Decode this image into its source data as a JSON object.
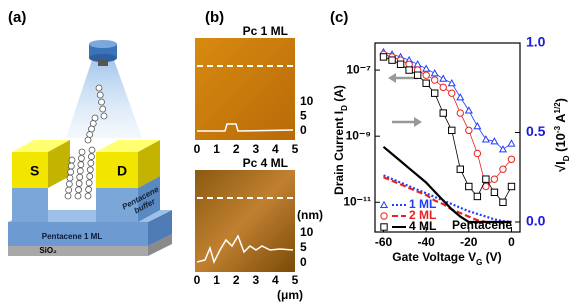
{
  "panel_labels": [
    "(a)",
    "(b)",
    "(c)"
  ],
  "diagram": {
    "source_label": "S",
    "drain_label": "D",
    "buffer_label": [
      "Pentacene",
      "buffer"
    ],
    "channel_label": "Pentacene 1 ML",
    "substrate_label": "SiO₂"
  },
  "afm": {
    "images": [
      {
        "title": "Pc 1 ML",
        "yticks": [
          0,
          5,
          10
        ],
        "xticks": [
          0,
          1,
          2,
          3,
          4,
          5
        ]
      },
      {
        "title": "Pc 4 ML",
        "yticks": [
          0,
          5,
          10
        ],
        "xticks": [
          0,
          1,
          2,
          3,
          4,
          5
        ],
        "y_unit": "(nm)",
        "x_unit": "(μm)"
      }
    ]
  },
  "chart_data": {
    "type": "line",
    "log_y": true,
    "x_label": [
      "Gate Voltage V",
      "G",
      " (V)"
    ],
    "y_label": [
      "Drain Current  I",
      "D",
      " (A)"
    ],
    "y2_label": [
      "√I",
      "D",
      " (10",
      "-3",
      " A",
      "1/2",
      ")"
    ],
    "annotation": "Pentacene",
    "x": [
      -60,
      -56,
      -52,
      -48,
      -44,
      -40,
      -36,
      -32,
      -28,
      -24,
      -20,
      -16,
      -12,
      -8,
      -4,
      0
    ],
    "xlim": [
      -64,
      4
    ],
    "xticks": [
      -60,
      -40,
      -20,
      0
    ],
    "ylim": [
      1.26e-12,
      6.6e-07
    ],
    "yticks": [
      {
        "value": 1e-11,
        "label": "10⁻¹¹"
      },
      {
        "value": 1e-09,
        "label": "10⁻⁹"
      },
      {
        "value": 1e-07,
        "label": "10⁻⁷"
      }
    ],
    "y2lim": [
      -0.056,
      1.0
    ],
    "y2ticks": [
      {
        "value": 0,
        "label": "0.0"
      },
      0.5,
      {
        "value": 1,
        "label": "1.0"
      }
    ],
    "series": [
      {
        "name": "1 ML",
        "color": "#1f3cff",
        "marker": "triangle",
        "values": [
          3.5e-07,
          3e-07,
          2.5e-07,
          2e-07,
          1.5e-07,
          1.1e-07,
          8e-08,
          5.5e-08,
          4e-08,
          1.5e-08,
          6e-09,
          2e-09,
          8e-10,
          7e-10,
          4e-10,
          6e-10
        ]
      },
      {
        "name": "2 ML",
        "color": "#e8231f",
        "marker": "circle",
        "values": [
          3e-07,
          2.5e-07,
          2e-07,
          1.5e-07,
          1e-07,
          7e-08,
          5e-08,
          3e-08,
          2e-08,
          5e-09,
          1.5e-09,
          3e-10,
          3e-11,
          5e-11,
          1e-10,
          2e-10
        ]
      },
      {
        "name": "4 ML",
        "color": "#000000",
        "marker": "square",
        "values": [
          2.5e-07,
          2e-07,
          1.5e-07,
          1e-07,
          7e-08,
          4e-08,
          2e-08,
          5e-09,
          1.5e-09,
          1e-10,
          3e-11,
          1.5e-11,
          5e-11,
          2e-11,
          1e-11,
          3e-11
        ]
      },
      {
        "axis": "y2",
        "color": "#1f3cff",
        "dash": "2,2",
        "values": [
          0.26,
          0.24,
          0.22,
          0.2,
          0.18,
          0.16,
          0.14,
          0.12,
          0.1,
          0.08,
          0.06,
          0.045,
          0.03,
          0.015,
          0.005,
          0
        ]
      },
      {
        "axis": "y2",
        "color": "#e8231f",
        "dash": "6,3",
        "values": [
          0.25,
          0.23,
          0.21,
          0.19,
          0.17,
          0.15,
          0.12,
          0.1,
          0.07,
          0.05,
          0.03,
          0.01,
          0,
          0,
          0,
          0
        ]
      },
      {
        "axis": "y2",
        "color": "#000000",
        "dash": "",
        "values": [
          0.42,
          0.38,
          0.34,
          0.3,
          0.26,
          0.22,
          0.17,
          0.12,
          0.07,
          0.03,
          0,
          0,
          0,
          0,
          0,
          0
        ]
      }
    ]
  }
}
